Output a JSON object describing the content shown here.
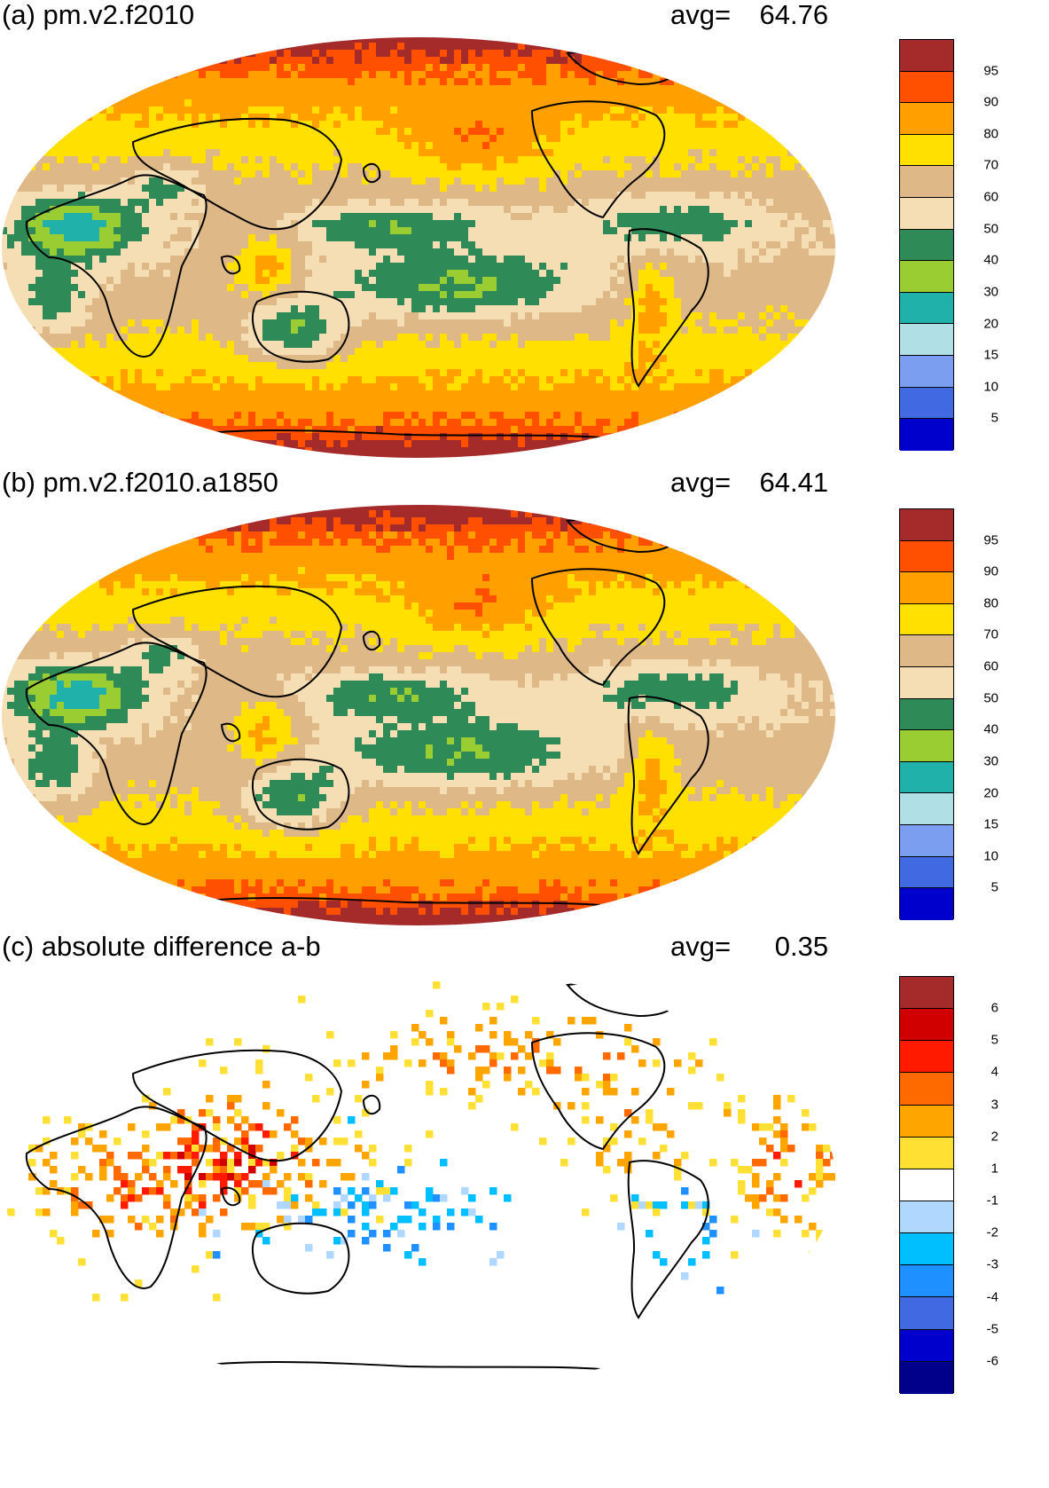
{
  "panels": [
    {
      "title": "(a) pm.v2.f2010",
      "avg_label": "avg=",
      "avg_value": "64.76",
      "ticks": [
        "95",
        "90",
        "80",
        "70",
        "60",
        "50",
        "40",
        "30",
        "20",
        "15",
        "10",
        "5"
      ],
      "colors": [
        "#a52a2a",
        "#ff4f00",
        "#ffa000",
        "#ffe000",
        "#deb887",
        "#f5deb3",
        "#2e8b57",
        "#9acd32",
        "#20b2aa",
        "#b0e0e6",
        "#7b9ef0",
        "#4169e1",
        "#0000cd"
      ]
    },
    {
      "title": "(b) pm.v2.f2010.a1850",
      "avg_label": "avg=",
      "avg_value": "64.41",
      "ticks": [
        "95",
        "90",
        "80",
        "70",
        "60",
        "50",
        "40",
        "30",
        "20",
        "15",
        "10",
        "5"
      ],
      "colors": [
        "#a52a2a",
        "#ff4f00",
        "#ffa000",
        "#ffe000",
        "#deb887",
        "#f5deb3",
        "#2e8b57",
        "#9acd32",
        "#20b2aa",
        "#b0e0e6",
        "#7b9ef0",
        "#4169e1",
        "#0000cd"
      ]
    },
    {
      "title": "(c) absolute difference a-b",
      "avg_label": "avg=",
      "avg_value": "0.35",
      "ticks": [
        "6",
        "5",
        "4",
        "3",
        "2",
        "1",
        "-1",
        "-2",
        "-3",
        "-4",
        "-5",
        "-6"
      ],
      "colors": [
        "#a52a2a",
        "#d00000",
        "#ff1a00",
        "#ff6a00",
        "#ffa500",
        "#ffe033",
        "#ffffff",
        "#b0d8ff",
        "#00bfff",
        "#1e90ff",
        "#4169e1",
        "#0000cd",
        "#00008b"
      ]
    }
  ]
}
